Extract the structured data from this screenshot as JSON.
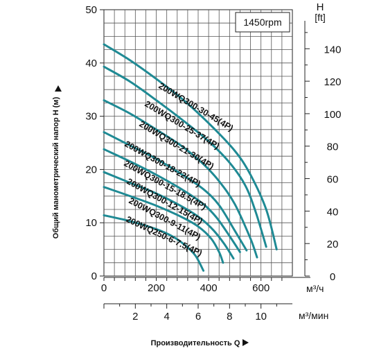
{
  "chart_data": {
    "type": "line",
    "title": "",
    "speed_box": "1450rpm",
    "xlabel": "Производительность Q",
    "ylabel": "Общий манометрический напор H (м)",
    "x_unit": "м³/ч",
    "x2_unit": "м³/мин",
    "y2_unit_line1": "H",
    "y2_unit_line2": "[ft]",
    "xlim": [
      0,
      720
    ],
    "ylim": [
      0,
      50
    ],
    "x_ticks": [
      0,
      200,
      400,
      600
    ],
    "x2_ticks": [
      2,
      4,
      6,
      8,
      10
    ],
    "y_ticks": [
      0,
      10,
      20,
      30,
      40,
      50
    ],
    "y2_ticks": [
      0,
      20,
      40,
      60,
      80,
      100,
      120,
      140
    ],
    "grid": true,
    "series": [
      {
        "name": "200WQ300-30-45(4P)",
        "color": "#1f8a94",
        "points": [
          [
            0,
            43.5
          ],
          [
            100,
            40.5
          ],
          [
            200,
            37
          ],
          [
            300,
            33.2
          ],
          [
            400,
            28.7
          ],
          [
            500,
            23.5
          ],
          [
            560,
            19
          ],
          [
            620,
            12.5
          ],
          [
            660,
            5
          ]
        ]
      },
      {
        "name": "200WQ300-25-37(4P)",
        "color": "#1f8a94",
        "points": [
          [
            0,
            39.3
          ],
          [
            100,
            36.5
          ],
          [
            200,
            33
          ],
          [
            300,
            29.3
          ],
          [
            400,
            25.3
          ],
          [
            480,
            21.3
          ],
          [
            540,
            17
          ],
          [
            580,
            12
          ],
          [
            620,
            5.5
          ]
        ]
      },
      {
        "name": "200WQ300-21-30(4P)",
        "color": "#1f8a94",
        "points": [
          [
            0,
            33
          ],
          [
            100,
            30.5
          ],
          [
            200,
            27.5
          ],
          [
            300,
            24.3
          ],
          [
            380,
            21
          ],
          [
            440,
            17.8
          ],
          [
            500,
            13.5
          ],
          [
            560,
            7
          ],
          [
            585,
            3.5
          ]
        ]
      },
      {
        "name": "200WQ300-18-22(4P)",
        "color": "#1f8a94",
        "points": [
          [
            0,
            27
          ],
          [
            100,
            24.5
          ],
          [
            200,
            22
          ],
          [
            300,
            19
          ],
          [
            380,
            16.3
          ],
          [
            440,
            13.3
          ],
          [
            500,
            8.5
          ],
          [
            545,
            4.8
          ]
        ]
      },
      {
        "name": "200WQ300-15-18.5(4P)",
        "color": "#1f8a94",
        "points": [
          [
            0,
            23.8
          ],
          [
            100,
            21.5
          ],
          [
            200,
            19
          ],
          [
            300,
            16.2
          ],
          [
            380,
            13.5
          ],
          [
            430,
            11
          ],
          [
            480,
            7.5
          ],
          [
            520,
            4.5
          ]
        ]
      },
      {
        "name": "200WQ300-12-15(4P)",
        "color": "#1f8a94",
        "points": [
          [
            0,
            19.5
          ],
          [
            100,
            17.5
          ],
          [
            200,
            15.5
          ],
          [
            300,
            13
          ],
          [
            370,
            10.8
          ],
          [
            420,
            8.5
          ],
          [
            460,
            6
          ],
          [
            495,
            3.3
          ]
        ]
      },
      {
        "name": "200WQ300-9-11(4P)",
        "color": "#1f8a94",
        "points": [
          [
            0,
            16.7
          ],
          [
            100,
            15
          ],
          [
            200,
            13.2
          ],
          [
            300,
            11
          ],
          [
            360,
            9.3
          ],
          [
            410,
            7
          ],
          [
            440,
            4.5
          ],
          [
            455,
            2.5
          ]
        ]
      },
      {
        "name": "200WQ250-6-7.5(4P)",
        "color": "#1f8a94",
        "points": [
          [
            0,
            11.4
          ],
          [
            100,
            10.3
          ],
          [
            200,
            8.8
          ],
          [
            260,
            7.5
          ],
          [
            310,
            5.8
          ],
          [
            350,
            3.8
          ],
          [
            380,
            1
          ]
        ]
      }
    ]
  }
}
